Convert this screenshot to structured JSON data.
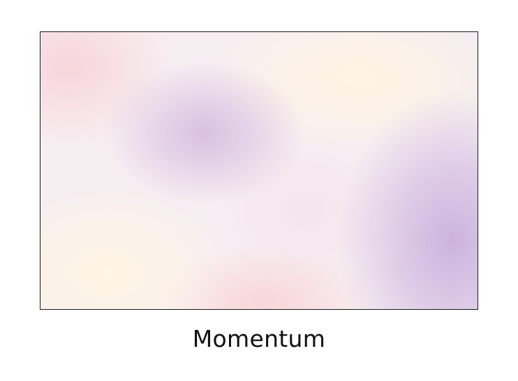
{
  "caption": "Momentum",
  "swatch_colors": {
    "lavender": "#d6bee0",
    "violet": "#cbb2de",
    "pink": "#f7d4da",
    "cream": "#fef5e4",
    "base": "#f7eef2",
    "border": "#1a1a1a"
  }
}
